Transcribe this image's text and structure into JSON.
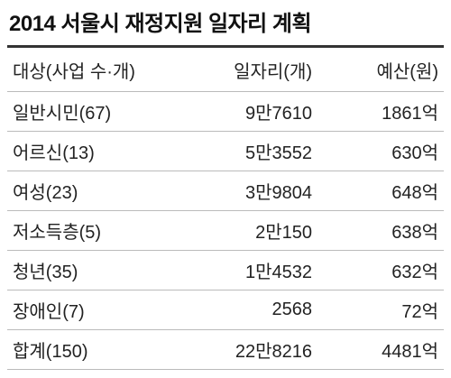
{
  "header": {
    "title": "2014 서울시 재정지원 일자리 계획"
  },
  "table": {
    "columns": [
      "대상(사업 수·개)",
      "일자리(개)",
      "예산(원)"
    ],
    "rows": [
      [
        "일반시민(67)",
        "9만7610",
        "1861억"
      ],
      [
        "어르신(13)",
        "5만3552",
        "630억"
      ],
      [
        "여성(23)",
        "3만9804",
        "648억"
      ],
      [
        "저소득층(5)",
        "2만150",
        "638억"
      ],
      [
        "청년(35)",
        "1만4532",
        "632억"
      ],
      [
        "장애인(7)",
        "2568",
        "72억"
      ],
      [
        "합계(150)",
        "22만8216",
        "4481억"
      ]
    ]
  }
}
